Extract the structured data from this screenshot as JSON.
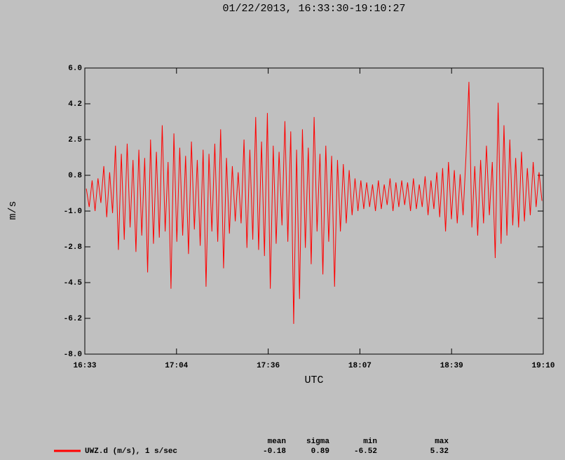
{
  "chart_data": {
    "type": "line",
    "title": "01/22/2013, 16:33:30-19:10:27",
    "xlabel": "UTC",
    "ylabel": "m/s",
    "xlim": [
      993.5,
      1150.45
    ],
    "xticks": [
      {
        "value": 993.5,
        "label": "16:33"
      },
      {
        "value": 1024.89,
        "label": "17:04"
      },
      {
        "value": 1056.28,
        "label": "17:36"
      },
      {
        "value": 1087.67,
        "label": "18:07"
      },
      {
        "value": 1119.06,
        "label": "18:39"
      },
      {
        "value": 1150.45,
        "label": "19:10"
      }
    ],
    "ylim": [
      -8,
      6
    ],
    "yticks": [
      {
        "value": 6,
        "label": "6.0"
      },
      {
        "value": 4.25,
        "label": "4.2"
      },
      {
        "value": 2.5,
        "label": "2.5"
      },
      {
        "value": 0.75,
        "label": "0.8"
      },
      {
        "value": -1,
        "label": "-1.0"
      },
      {
        "value": -2.75,
        "label": "-2.8"
      },
      {
        "value": -4.5,
        "label": "-4.5"
      },
      {
        "value": -6.25,
        "label": "-6.2"
      },
      {
        "value": -8,
        "label": "-8.0"
      }
    ],
    "x": [
      994,
      995,
      996,
      997,
      998,
      999,
      1000,
      1001,
      1002,
      1003,
      1004,
      1005,
      1006,
      1007,
      1008,
      1009,
      1010,
      1011,
      1012,
      1013,
      1014,
      1015,
      1016,
      1017,
      1018,
      1019,
      1020,
      1021,
      1022,
      1023,
      1024,
      1025,
      1026,
      1027,
      1028,
      1029,
      1030,
      1031,
      1032,
      1033,
      1034,
      1035,
      1036,
      1037,
      1038,
      1039,
      1040,
      1041,
      1042,
      1043,
      1044,
      1045,
      1046,
      1047,
      1048,
      1049,
      1050,
      1051,
      1052,
      1053,
      1054,
      1055,
      1056,
      1057,
      1058,
      1059,
      1060,
      1061,
      1062,
      1063,
      1064,
      1065,
      1066,
      1067,
      1068,
      1069,
      1070,
      1071,
      1072,
      1073,
      1074,
      1075,
      1076,
      1077,
      1078,
      1079,
      1080,
      1081,
      1082,
      1083,
      1084,
      1085,
      1086,
      1087,
      1088,
      1089,
      1090,
      1091,
      1092,
      1093,
      1094,
      1095,
      1096,
      1097,
      1098,
      1099,
      1100,
      1101,
      1102,
      1103,
      1104,
      1105,
      1106,
      1107,
      1108,
      1109,
      1110,
      1111,
      1112,
      1113,
      1114,
      1115,
      1116,
      1117,
      1118,
      1119,
      1120,
      1121,
      1122,
      1123,
      1124,
      1125,
      1126,
      1127,
      1128,
      1129,
      1130,
      1131,
      1132,
      1133,
      1134,
      1135,
      1136,
      1137,
      1138,
      1139,
      1140,
      1141,
      1142,
      1143,
      1144,
      1145,
      1146,
      1147,
      1148,
      1149,
      1150
    ],
    "series": [
      {
        "name": "UWZ.d (m/s), 1 s/sec",
        "color": "#ff0000",
        "values": [
          0.1,
          -0.8,
          0.5,
          -1.0,
          0.6,
          -0.6,
          1.2,
          -1.3,
          0.9,
          -1.1,
          2.2,
          -2.9,
          1.8,
          -2.4,
          2.3,
          -1.8,
          1.5,
          -3.0,
          2.0,
          -2.2,
          1.6,
          -4.0,
          2.5,
          -2.6,
          1.9,
          -2.3,
          3.2,
          -2.0,
          1.4,
          -4.8,
          2.8,
          -2.5,
          2.1,
          -2.2,
          1.7,
          -3.1,
          2.4,
          -1.9,
          1.5,
          -2.7,
          2.0,
          -4.7,
          1.8,
          -2.0,
          2.3,
          -2.5,
          3.0,
          -3.8,
          1.6,
          -2.1,
          1.2,
          -1.5,
          0.9,
          -1.6,
          2.5,
          -2.8,
          2.0,
          -2.4,
          3.6,
          -2.9,
          2.4,
          -3.2,
          3.8,
          -4.8,
          2.2,
          -2.6,
          1.9,
          -1.7,
          3.4,
          -2.5,
          2.9,
          -6.52,
          2.0,
          -5.3,
          3.0,
          -2.8,
          2.1,
          -3.6,
          3.6,
          -2.0,
          1.8,
          -4.1,
          2.2,
          -2.5,
          1.7,
          -4.7,
          1.5,
          -2.0,
          1.3,
          -1.6,
          1.0,
          -1.2,
          0.6,
          -1.0,
          0.5,
          -0.9,
          0.4,
          -0.8,
          0.3,
          -1.0,
          0.5,
          -0.9,
          0.3,
          -0.7,
          0.6,
          -1.0,
          0.4,
          -0.8,
          0.5,
          -0.7,
          0.4,
          -1.0,
          0.6,
          -0.9,
          0.3,
          -0.8,
          0.7,
          -1.2,
          0.5,
          -0.9,
          0.9,
          -1.3,
          1.1,
          -2.0,
          1.4,
          -1.4,
          1.0,
          -1.6,
          0.8,
          -1.2,
          1.7,
          5.32,
          -1.8,
          1.2,
          -2.2,
          1.5,
          -1.6,
          2.2,
          -1.2,
          1.4,
          -3.3,
          4.3,
          -2.6,
          3.2,
          -2.2,
          2.5,
          -1.7,
          1.6,
          -1.8,
          1.9,
          -1.5,
          1.1,
          -1.2,
          1.4,
          -0.8,
          0.9,
          -0.5
        ]
      }
    ],
    "stats": {
      "headers": [
        "mean",
        "sigma",
        "min",
        "max"
      ],
      "values": [
        -0.18,
        0.89,
        -6.52,
        5.32
      ]
    }
  }
}
